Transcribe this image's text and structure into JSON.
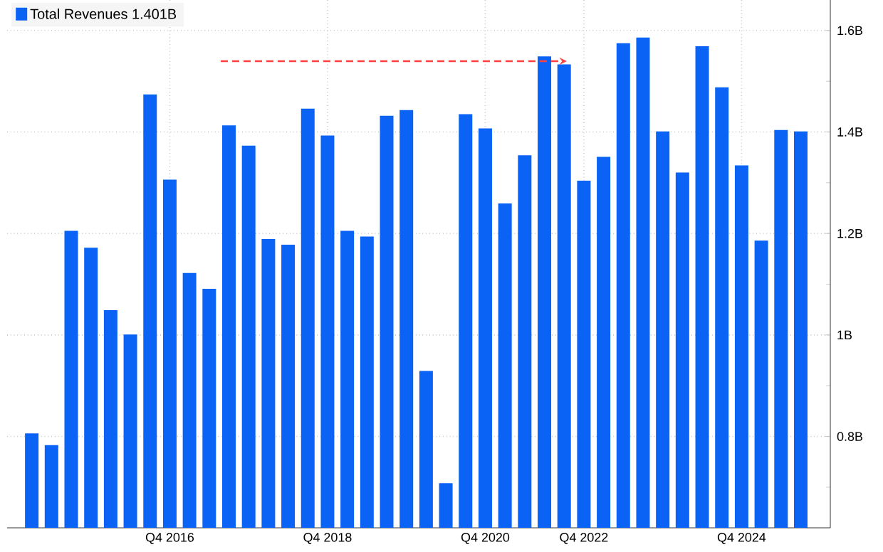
{
  "chart_data": {
    "type": "bar",
    "categories": [
      null,
      null,
      null,
      null,
      null,
      null,
      null,
      "Q4 2016",
      null,
      null,
      null,
      null,
      null,
      null,
      null,
      "Q4 2018",
      null,
      null,
      null,
      null,
      null,
      null,
      null,
      "Q4 2020",
      null,
      null,
      null,
      null,
      "Q4 2022",
      null,
      null,
      null,
      null,
      null,
      null,
      null,
      "Q4 2024",
      null,
      null,
      null
    ],
    "series": [
      {
        "name": "Total Revenues 1.401B",
        "color": "#0b63f6",
        "values": [
          0.806,
          0.783,
          1.205,
          1.172,
          1.049,
          1.001,
          1.474,
          1.306,
          1.122,
          1.091,
          1.413,
          1.373,
          1.189,
          1.178,
          1.446,
          1.393,
          1.205,
          1.194,
          1.432,
          1.443,
          0.929,
          0.708,
          1.435,
          1.407,
          1.259,
          1.354,
          1.549,
          1.533,
          1.304,
          1.351,
          1.575,
          1.586,
          1.401,
          1.32,
          1.569,
          1.488,
          1.334,
          1.186,
          1.404,
          1.401
        ]
      }
    ],
    "ylim": [
      0.62,
      1.66
    ],
    "yticks": [
      {
        "value": 0.7,
        "label": null
      },
      {
        "value": 0.8,
        "label": "0.8B"
      },
      {
        "value": 0.9,
        "label": null
      },
      {
        "value": 1.0,
        "label": "1B"
      },
      {
        "value": 1.1,
        "label": null
      },
      {
        "value": 1.2,
        "label": "1.2B"
      },
      {
        "value": 1.3,
        "label": null
      },
      {
        "value": 1.4,
        "label": "1.4B"
      },
      {
        "value": 1.5,
        "label": null
      },
      {
        "value": 1.6,
        "label": "1.6B"
      }
    ],
    "grid": true,
    "legend": "top left"
  }
}
